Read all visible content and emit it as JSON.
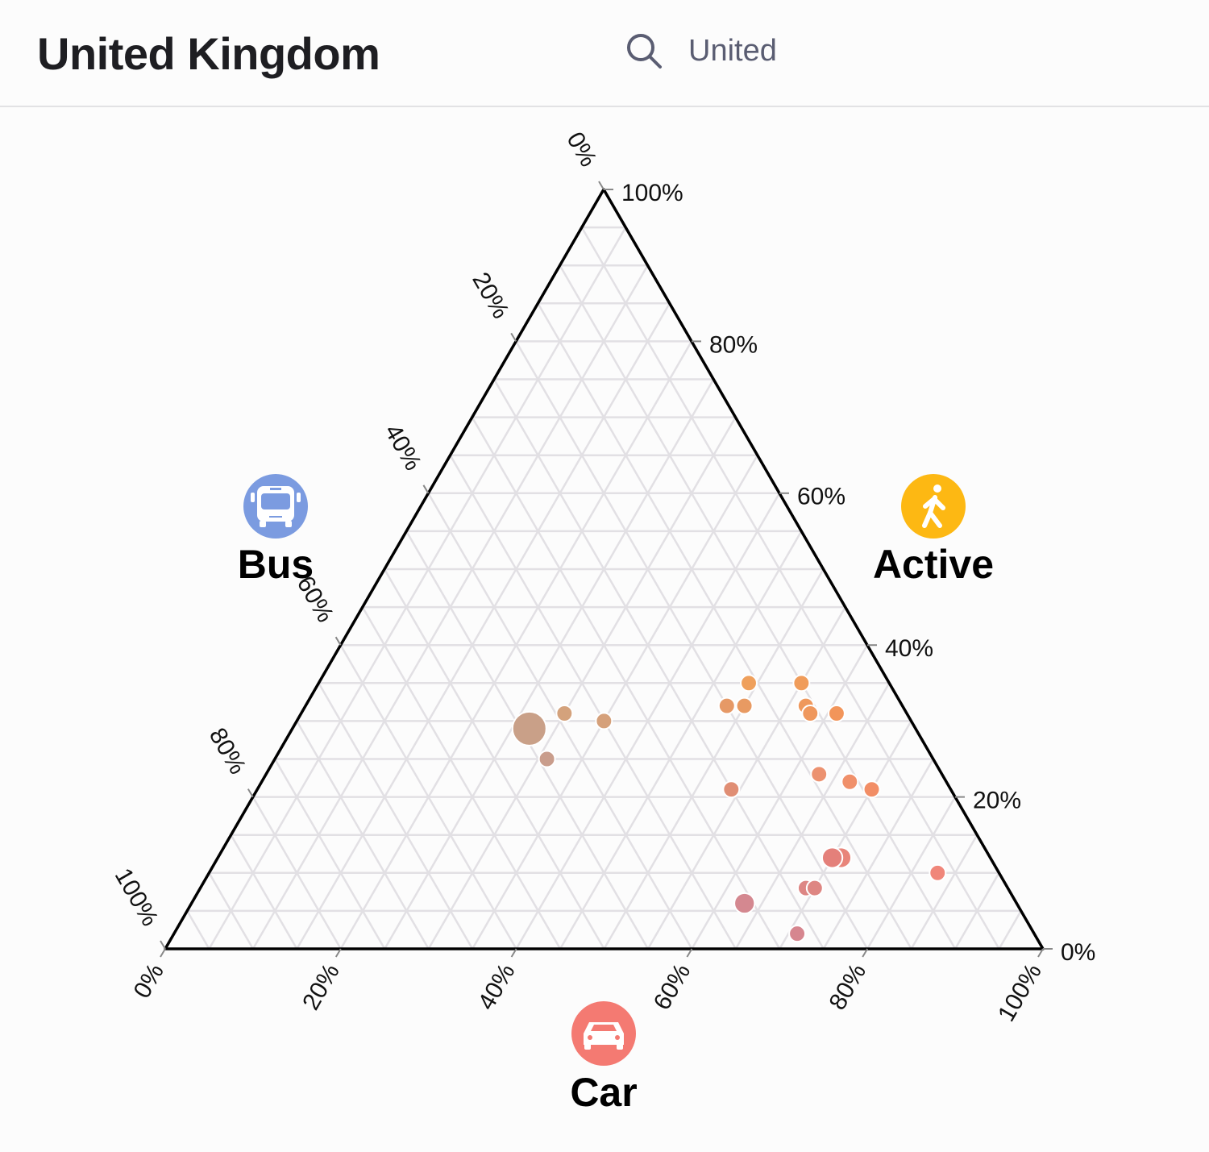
{
  "header": {
    "title": "United Kingdom",
    "search_icon": "search-icon",
    "search_value": "United"
  },
  "chart_data": {
    "type": "ternary-scatter",
    "axes": {
      "active": {
        "label": "Active",
        "icon": "walking-person-icon",
        "color": "#fdb813",
        "ticks": [
          "0%",
          "20%",
          "40%",
          "60%",
          "80%",
          "100%"
        ]
      },
      "bus": {
        "label": "Bus",
        "icon": "bus-icon",
        "color": "#7b9be0",
        "ticks": [
          "0%",
          "20%",
          "40%",
          "60%",
          "80%",
          "100%"
        ]
      },
      "car": {
        "label": "Car",
        "icon": "car-icon",
        "color": "#f47a72",
        "ticks": [
          "0%",
          "20%",
          "40%",
          "60%",
          "80%",
          "100%"
        ]
      }
    },
    "grid": true,
    "grid_step_percent": 5,
    "points": [
      {
        "active": 35,
        "bus": 16,
        "car": 49,
        "size_rel": 1,
        "color": "#efa05c"
      },
      {
        "active": 35,
        "bus": 10,
        "car": 55,
        "size_rel": 1,
        "color": "#f09c5a"
      },
      {
        "active": 32,
        "bus": 20,
        "car": 48,
        "size_rel": 1,
        "color": "#e69966"
      },
      {
        "active": 32,
        "bus": 18,
        "car": 50,
        "size_rel": 1,
        "color": "#e89a62"
      },
      {
        "active": 32,
        "bus": 11,
        "car": 57,
        "size_rel": 1,
        "color": "#ef985c"
      },
      {
        "active": 31,
        "bus": 11,
        "car": 58,
        "size_rel": 1,
        "color": "#ef975c"
      },
      {
        "active": 31,
        "bus": 8,
        "car": 61,
        "size_rel": 1,
        "color": "#f2955a"
      },
      {
        "active": 31,
        "bus": 39,
        "car": 30,
        "size_rel": 1,
        "color": "#d4a27c"
      },
      {
        "active": 30,
        "bus": 35,
        "car": 35,
        "size_rel": 1,
        "color": "#d5a07a"
      },
      {
        "active": 29,
        "bus": 44,
        "car": 27,
        "size_rel": 5,
        "color": "#c9a088"
      },
      {
        "active": 25,
        "bus": 44,
        "car": 31,
        "size_rel": 1,
        "color": "#c99d8c"
      },
      {
        "active": 21,
        "bus": 25,
        "car": 54,
        "size_rel": 1,
        "color": "#e08e74"
      },
      {
        "active": 23,
        "bus": 14,
        "car": 63,
        "size_rel": 1,
        "color": "#ec9270"
      },
      {
        "active": 22,
        "bus": 11,
        "car": 67,
        "size_rel": 1,
        "color": "#f0906a"
      },
      {
        "active": 21,
        "bus": 9,
        "car": 70,
        "size_rel": 1,
        "color": "#f28e66"
      },
      {
        "active": 12,
        "bus": 17,
        "car": 71,
        "size_rel": 1.6,
        "color": "#e8857a"
      },
      {
        "active": 12,
        "bus": 18,
        "car": 70,
        "size_rel": 1.6,
        "color": "#e4807a"
      },
      {
        "active": 10,
        "bus": 7,
        "car": 83,
        "size_rel": 1,
        "color": "#f0867a"
      },
      {
        "active": 8,
        "bus": 23,
        "car": 69,
        "size_rel": 1,
        "color": "#dd8684"
      },
      {
        "active": 8,
        "bus": 22,
        "car": 70,
        "size_rel": 1,
        "color": "#de8682"
      },
      {
        "active": 6,
        "bus": 31,
        "car": 63,
        "size_rel": 1.6,
        "color": "#d48890"
      },
      {
        "active": 2,
        "bus": 27,
        "car": 71,
        "size_rel": 1,
        "color": "#d6868f"
      }
    ]
  }
}
